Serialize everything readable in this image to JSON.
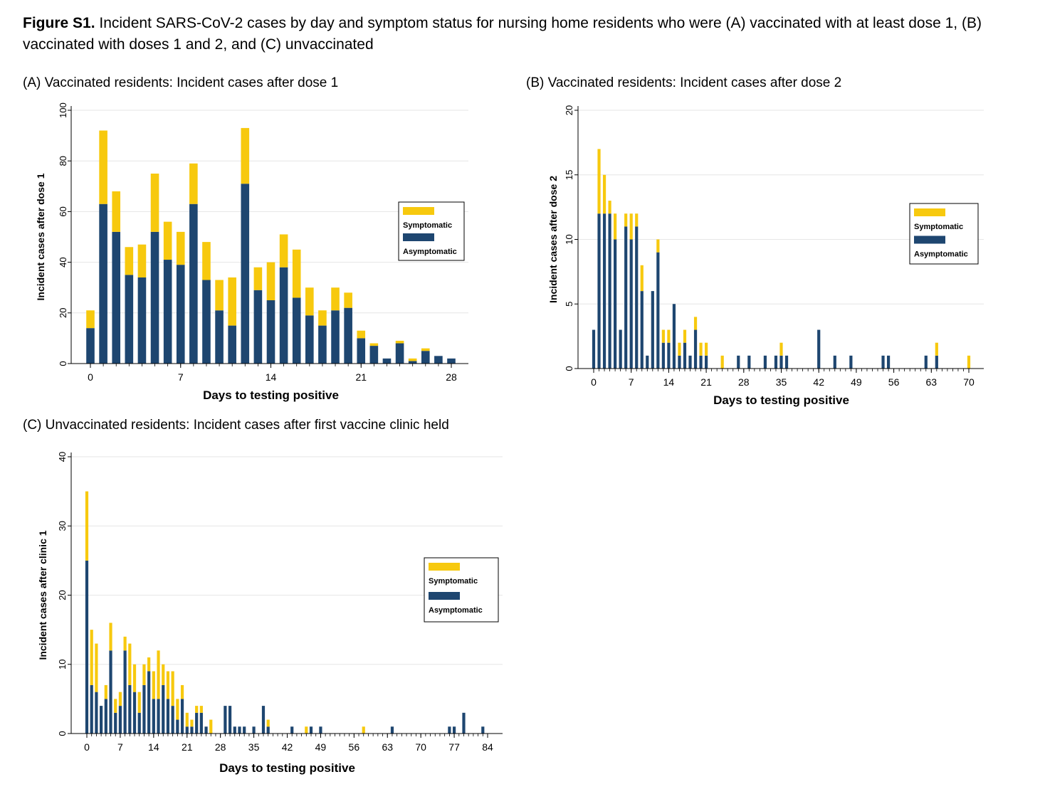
{
  "figure": {
    "label": "Figure S1.",
    "caption": "Incident SARS-CoV-2 cases by day and symptom status for nursing home residents who were (A) vaccinated with at least dose 1, (B) vaccinated with doses 1 and 2, and (C) unvaccinated"
  },
  "colors": {
    "symptomatic": "#f7c90e",
    "asymptomatic": "#1e4670",
    "grid": "#e6e6e6"
  },
  "chart_data": [
    {
      "type": "bar",
      "stacked": true,
      "title": "(A) Vaccinated residents:  Incident cases after dose 1",
      "xlabel": "Days to testing positive",
      "ylabel": "Incident cases after dose 1",
      "xlim": [
        0,
        28
      ],
      "ylim": [
        0,
        100
      ],
      "xticks": [
        0,
        7,
        14,
        21,
        28
      ],
      "yticks": [
        0,
        20,
        40,
        60,
        80,
        100
      ],
      "legend": "right",
      "x": [
        0,
        1,
        2,
        3,
        4,
        5,
        6,
        7,
        8,
        9,
        10,
        11,
        12,
        13,
        14,
        15,
        16,
        17,
        18,
        19,
        20,
        21,
        22,
        23,
        24,
        25,
        26,
        27,
        28
      ],
      "series": [
        {
          "name": "Asymptomatic",
          "values": [
            14,
            63,
            52,
            35,
            34,
            52,
            41,
            39,
            63,
            33,
            21,
            15,
            71,
            29,
            25,
            38,
            26,
            19,
            15,
            21,
            22,
            10,
            7,
            2,
            8,
            1,
            5,
            3,
            2
          ]
        },
        {
          "name": "Symptomatic",
          "values": [
            7,
            29,
            16,
            11,
            13,
            23,
            15,
            13,
            16,
            15,
            12,
            19,
            22,
            9,
            15,
            13,
            19,
            11,
            6,
            9,
            6,
            3,
            1,
            0,
            1,
            1,
            1,
            0,
            0
          ]
        }
      ]
    },
    {
      "type": "bar",
      "stacked": true,
      "title": "(B) Vaccinated residents: Incident cases after dose 2",
      "xlabel": "Days to testing positive",
      "ylabel": "Incident cases after dose 2",
      "xlim": [
        0,
        70
      ],
      "ylim": [
        0,
        20
      ],
      "xticks": [
        0,
        7,
        14,
        21,
        28,
        35,
        42,
        49,
        56,
        63,
        70
      ],
      "yticks": [
        0,
        5,
        10,
        15,
        20
      ],
      "legend": "right",
      "x": [
        0,
        1,
        2,
        3,
        4,
        5,
        6,
        7,
        8,
        9,
        10,
        11,
        12,
        13,
        14,
        15,
        16,
        17,
        18,
        19,
        20,
        21,
        22,
        23,
        24,
        25,
        26,
        27,
        28,
        29,
        30,
        31,
        32,
        33,
        34,
        35,
        36,
        37,
        38,
        39,
        40,
        41,
        42,
        43,
        44,
        45,
        46,
        47,
        48,
        49,
        50,
        51,
        52,
        53,
        54,
        55,
        56,
        57,
        58,
        59,
        60,
        61,
        62,
        63,
        64,
        65,
        66,
        67,
        68,
        69,
        70
      ],
      "series": [
        {
          "name": "Asymptomatic",
          "values": [
            3,
            12,
            12,
            12,
            10,
            3,
            11,
            10,
            11,
            6,
            1,
            6,
            9,
            2,
            2,
            5,
            1,
            2,
            1,
            3,
            1,
            1,
            0,
            0,
            0,
            0,
            0,
            1,
            0,
            1,
            0,
            0,
            1,
            0,
            1,
            1,
            1,
            0,
            0,
            0,
            0,
            0,
            3,
            0,
            0,
            1,
            0,
            0,
            1,
            0,
            0,
            0,
            0,
            0,
            1,
            1,
            0,
            0,
            0,
            0,
            0,
            0,
            1,
            0,
            1,
            0,
            0,
            0,
            0,
            0,
            0
          ]
        },
        {
          "name": "Symptomatic",
          "values": [
            0,
            5,
            3,
            1,
            2,
            0,
            1,
            2,
            1,
            2,
            0,
            0,
            1,
            1,
            1,
            0,
            1,
            1,
            0,
            1,
            1,
            1,
            0,
            0,
            1,
            0,
            0,
            0,
            0,
            0,
            0,
            0,
            0,
            0,
            0,
            1,
            0,
            0,
            0,
            0,
            0,
            0,
            0,
            0,
            0,
            0,
            0,
            0,
            0,
            0,
            0,
            0,
            0,
            0,
            0,
            0,
            0,
            0,
            0,
            0,
            0,
            0,
            0,
            0,
            1,
            0,
            0,
            0,
            0,
            0,
            1
          ]
        }
      ]
    },
    {
      "type": "bar",
      "stacked": true,
      "title": "(C) Unvaccinated residents: Incident cases after first vaccine clinic held",
      "xlabel": "Days to testing positive",
      "ylabel": "Incident cases after clinic 1",
      "xlim": [
        0,
        84
      ],
      "ylim": [
        0,
        40
      ],
      "xticks": [
        0,
        7,
        14,
        21,
        28,
        35,
        42,
        49,
        56,
        63,
        70,
        77,
        84
      ],
      "yticks": [
        0,
        10,
        20,
        30,
        40
      ],
      "legend": "right",
      "x": [
        0,
        1,
        2,
        3,
        4,
        5,
        6,
        7,
        8,
        9,
        10,
        11,
        12,
        13,
        14,
        15,
        16,
        17,
        18,
        19,
        20,
        21,
        22,
        23,
        24,
        25,
        26,
        27,
        28,
        29,
        30,
        31,
        32,
        33,
        34,
        35,
        36,
        37,
        38,
        39,
        40,
        41,
        42,
        43,
        44,
        45,
        46,
        47,
        48,
        49,
        50,
        51,
        52,
        53,
        54,
        55,
        56,
        57,
        58,
        59,
        60,
        61,
        62,
        63,
        64,
        65,
        66,
        67,
        68,
        69,
        70,
        71,
        72,
        73,
        74,
        75,
        76,
        77,
        78,
        79,
        80,
        81,
        82,
        83,
        84
      ],
      "series": [
        {
          "name": "Asymptomatic",
          "values": [
            25,
            7,
            6,
            4,
            5,
            12,
            3,
            4,
            12,
            7,
            6,
            3,
            7,
            9,
            5,
            5,
            7,
            5,
            4,
            2,
            5,
            1,
            1,
            3,
            3,
            1,
            0,
            0,
            0,
            4,
            4,
            1,
            1,
            1,
            0,
            1,
            0,
            4,
            1,
            0,
            0,
            0,
            0,
            1,
            0,
            0,
            0,
            1,
            0,
            1,
            0,
            0,
            0,
            0,
            0,
            0,
            0,
            0,
            0,
            0,
            0,
            0,
            0,
            0,
            1,
            0,
            0,
            0,
            0,
            0,
            0,
            0,
            0,
            0,
            0,
            0,
            1,
            1,
            0,
            3,
            0,
            0,
            0,
            1,
            0
          ]
        },
        {
          "name": "Symptomatic",
          "values": [
            10,
            8,
            7,
            0,
            2,
            4,
            2,
            2,
            2,
            6,
            4,
            3,
            3,
            2,
            4,
            7,
            3,
            4,
            5,
            3,
            2,
            2,
            1,
            1,
            1,
            0,
            2,
            0,
            0,
            0,
            0,
            0,
            0,
            0,
            0,
            0,
            0,
            0,
            1,
            0,
            0,
            0,
            0,
            0,
            0,
            0,
            1,
            0,
            0,
            0,
            0,
            0,
            0,
            0,
            0,
            0,
            0,
            0,
            1,
            0,
            0,
            0,
            0,
            0,
            0,
            0,
            0,
            0,
            0,
            0,
            0,
            0,
            0,
            0,
            0,
            0,
            0,
            0,
            0,
            0,
            0,
            0,
            0,
            0,
            0
          ]
        }
      ]
    }
  ]
}
